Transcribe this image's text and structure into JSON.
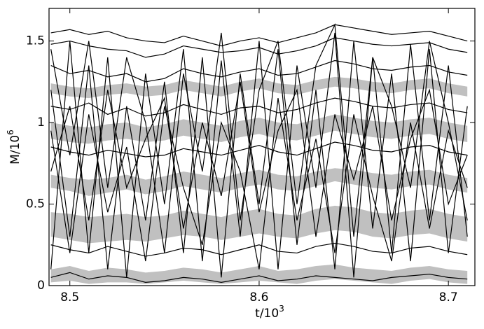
{
  "chart_data": {
    "type": "line",
    "xlabel": {
      "text": "t/10",
      "sup": "3"
    },
    "ylabel": {
      "text": "M/10",
      "sup": "6"
    },
    "xlim": [
      8.489,
      8.714
    ],
    "ylim": [
      0,
      1.7
    ],
    "xticks": [
      8.5,
      8.6,
      8.7
    ],
    "yticks": [
      0,
      0.5,
      1,
      1.5
    ],
    "grid": false,
    "x": [
      8.49,
      8.5,
      8.51,
      8.52,
      8.53,
      8.54,
      8.55,
      8.56,
      8.57,
      8.58,
      8.59,
      8.6,
      8.61,
      8.62,
      8.63,
      8.64,
      8.65,
      8.66,
      8.67,
      8.68,
      8.69,
      8.7,
      8.71
    ],
    "bands": [
      {
        "color": "#c0c0c0",
        "lower": [
          0.3,
          0.28,
          0.26,
          0.27,
          0.28,
          0.27,
          0.29,
          0.31,
          0.3,
          0.28,
          0.3,
          0.32,
          0.3,
          0.29,
          0.32,
          0.34,
          0.33,
          0.3,
          0.29,
          0.31,
          0.32,
          0.29,
          0.27
        ],
        "upper": [
          0.45,
          0.44,
          0.42,
          0.43,
          0.44,
          0.42,
          0.43,
          0.46,
          0.44,
          0.42,
          0.45,
          0.47,
          0.44,
          0.43,
          0.47,
          0.49,
          0.48,
          0.45,
          0.44,
          0.46,
          0.47,
          0.44,
          0.42
        ]
      },
      {
        "color": "#c0c0c0",
        "lower": [
          0.6,
          0.58,
          0.55,
          0.57,
          0.59,
          0.56,
          0.58,
          0.61,
          0.59,
          0.57,
          0.6,
          0.62,
          0.59,
          0.58,
          0.61,
          0.64,
          0.62,
          0.6,
          0.59,
          0.61,
          0.62,
          0.59,
          0.57
        ],
        "upper": [
          0.68,
          0.66,
          0.65,
          0.66,
          0.68,
          0.65,
          0.67,
          0.7,
          0.68,
          0.66,
          0.69,
          0.71,
          0.68,
          0.67,
          0.7,
          0.72,
          0.71,
          0.69,
          0.68,
          0.7,
          0.71,
          0.68,
          0.66
        ]
      },
      {
        "color": "#c0c0c0",
        "lower": [
          0.9,
          0.88,
          0.87,
          0.89,
          0.9,
          0.88,
          0.89,
          0.92,
          0.9,
          0.88,
          0.91,
          0.93,
          0.9,
          0.89,
          0.92,
          0.95,
          0.93,
          0.91,
          0.9,
          0.92,
          0.93,
          0.9,
          0.88
        ],
        "upper": [
          1.0,
          0.98,
          0.97,
          0.99,
          1.0,
          0.97,
          0.99,
          1.02,
          1.0,
          0.98,
          1.01,
          1.03,
          1.0,
          0.99,
          1.02,
          1.05,
          1.03,
          1.01,
          1.0,
          1.02,
          1.03,
          1.0,
          0.98
        ]
      },
      {
        "color": "#c0c0c0",
        "lower": [
          1.18,
          1.16,
          1.15,
          1.17,
          1.18,
          1.16,
          1.17,
          1.2,
          1.18,
          1.16,
          1.19,
          1.21,
          1.18,
          1.17,
          1.2,
          1.22,
          1.21,
          1.19,
          1.18,
          1.2,
          1.21,
          1.18,
          1.16
        ],
        "upper": [
          1.24,
          1.22,
          1.21,
          1.23,
          1.24,
          1.22,
          1.23,
          1.26,
          1.24,
          1.22,
          1.25,
          1.27,
          1.24,
          1.23,
          1.26,
          1.28,
          1.27,
          1.25,
          1.24,
          1.26,
          1.27,
          1.24,
          1.22
        ]
      },
      {
        "color": "#c0c0c0",
        "lower": [
          0.02,
          0.03,
          0.01,
          0.02,
          0.02,
          0.01,
          0.02,
          0.03,
          0.02,
          0.01,
          0.02,
          0.03,
          0.02,
          0.01,
          0.03,
          0.04,
          0.03,
          0.02,
          0.01,
          0.03,
          0.04,
          0.02,
          0.01
        ],
        "upper": [
          0.1,
          0.12,
          0.09,
          0.11,
          0.1,
          0.08,
          0.09,
          0.11,
          0.1,
          0.08,
          0.1,
          0.12,
          0.09,
          0.1,
          0.12,
          0.13,
          0.11,
          0.1,
          0.09,
          0.11,
          0.12,
          0.1,
          0.09
        ]
      }
    ],
    "series": [
      {
        "color": "#000000",
        "values": [
          1.55,
          1.57,
          1.54,
          1.56,
          1.52,
          1.5,
          1.49,
          1.53,
          1.5,
          1.47,
          1.5,
          1.52,
          1.49,
          1.52,
          1.55,
          1.6,
          1.58,
          1.56,
          1.54,
          1.55,
          1.56,
          1.53,
          1.5
        ]
      },
      {
        "color": "#000000",
        "values": [
          1.48,
          1.5,
          1.47,
          1.45,
          1.44,
          1.4,
          1.42,
          1.47,
          1.45,
          1.43,
          1.44,
          1.46,
          1.42,
          1.44,
          1.47,
          1.52,
          1.5,
          1.48,
          1.47,
          1.48,
          1.49,
          1.45,
          1.43
        ]
      },
      {
        "color": "#000000",
        "values": [
          0.1,
          1.5,
          0.2,
          1.4,
          0.05,
          1.3,
          0.5,
          1.45,
          0.15,
          1.38,
          0.3,
          1.5,
          0.1,
          1.35,
          0.6,
          1.55,
          0.05,
          1.4,
          0.2,
          1.48,
          0.4,
          1.35,
          0.3
        ]
      },
      {
        "color": "#000000",
        "values": [
          1.2,
          0.3,
          1.35,
          0.1,
          1.1,
          0.4,
          1.25,
          0.2,
          1.4,
          0.05,
          1.3,
          0.5,
          1.45,
          0.25,
          1.2,
          0.1,
          1.5,
          0.35,
          1.3,
          0.15,
          1.45,
          0.2,
          1.1
        ]
      },
      {
        "color": "#000000",
        "values": [
          1.35,
          1.3,
          1.32,
          1.28,
          1.3,
          1.25,
          1.27,
          1.33,
          1.3,
          1.28,
          1.31,
          1.33,
          1.29,
          1.3,
          1.34,
          1.38,
          1.36,
          1.33,
          1.32,
          1.34,
          1.35,
          1.31,
          1.29
        ]
      },
      {
        "color": "#000000",
        "values": [
          0.7,
          1.1,
          0.4,
          1.2,
          0.6,
          0.9,
          1.15,
          0.35,
          1.0,
          0.55,
          1.25,
          0.45,
          0.95,
          1.2,
          0.3,
          1.05,
          0.65,
          1.1,
          0.4,
          0.9,
          1.2,
          0.5,
          0.8
        ]
      },
      {
        "color": "#000000",
        "values": [
          1.1,
          1.08,
          1.12,
          1.05,
          1.09,
          1.04,
          1.06,
          1.11,
          1.08,
          1.05,
          1.09,
          1.1,
          1.06,
          1.08,
          1.12,
          1.15,
          1.13,
          1.1,
          1.09,
          1.11,
          1.12,
          1.08,
          1.06
        ]
      },
      {
        "color": "#000000",
        "values": [
          1.45,
          0.8,
          1.5,
          0.6,
          1.4,
          1.0,
          0.2,
          1.3,
          0.7,
          1.55,
          0.4,
          1.2,
          1.5,
          0.5,
          1.35,
          1.6,
          0.3,
          1.4,
          1.1,
          0.6,
          1.5,
          1.0,
          0.4
        ]
      },
      {
        "color": "#000000",
        "values": [
          0.85,
          0.82,
          0.8,
          0.83,
          0.81,
          0.79,
          0.8,
          0.84,
          0.82,
          0.8,
          0.83,
          0.86,
          0.82,
          0.8,
          0.84,
          0.88,
          0.86,
          0.83,
          0.82,
          0.85,
          0.86,
          0.82,
          0.8
        ]
      },
      {
        "color": "#000000",
        "values": [
          0.05,
          0.08,
          0.04,
          0.06,
          0.05,
          0.02,
          0.03,
          0.05,
          0.04,
          0.02,
          0.04,
          0.06,
          0.03,
          0.04,
          0.06,
          0.05,
          0.04,
          0.03,
          0.05,
          0.06,
          0.07,
          0.05,
          0.04
        ]
      },
      {
        "color": "#000000",
        "values": [
          0.95,
          0.2,
          1.05,
          0.45,
          0.85,
          0.15,
          1.1,
          0.6,
          0.25,
          1.0,
          0.7,
          0.1,
          1.15,
          0.4,
          0.9,
          0.2,
          1.05,
          0.55,
          0.15,
          1.0,
          0.35,
          0.95,
          0.6
        ]
      },
      {
        "color": "#000000",
        "values": [
          0.25,
          0.22,
          0.2,
          0.24,
          0.21,
          0.18,
          0.2,
          0.23,
          0.22,
          0.19,
          0.22,
          0.25,
          0.21,
          0.2,
          0.24,
          0.26,
          0.24,
          0.21,
          0.2,
          0.23,
          0.24,
          0.21,
          0.19
        ]
      }
    ]
  }
}
